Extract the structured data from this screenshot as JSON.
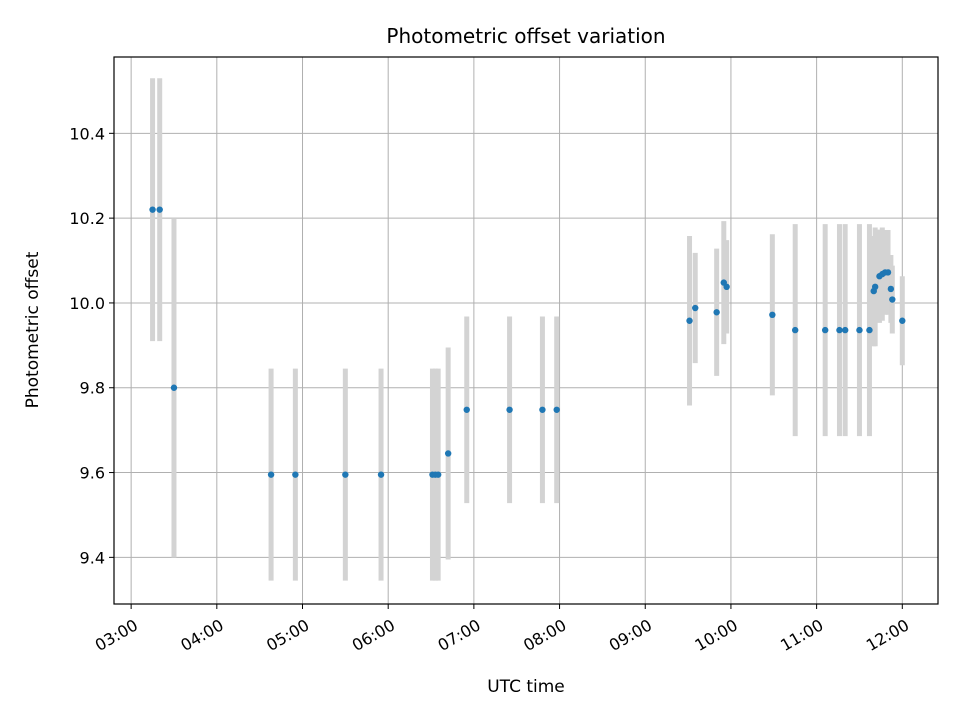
{
  "chart_data": {
    "type": "scatter",
    "title": "Photometric offset variation",
    "xlabel": "UTC time",
    "ylabel": "Photometric offset",
    "x_tick_labels": [
      "03:00",
      "04:00",
      "05:00",
      "06:00",
      "07:00",
      "08:00",
      "09:00",
      "10:00",
      "11:00",
      "12:00"
    ],
    "y_tick_labels": [
      "9.4",
      "9.6",
      "9.8",
      "10.0",
      "10.2",
      "10.4"
    ],
    "x_ticks": [
      "03:00",
      "04:00",
      "05:00",
      "06:00",
      "07:00",
      "08:00",
      "09:00",
      "10:00",
      "11:00",
      "12:00"
    ],
    "y_ticks": [
      9.4,
      9.6,
      9.8,
      10.0,
      10.2,
      10.4
    ],
    "xlim": [
      "02:48",
      "12:25"
    ],
    "ylim": [
      9.29,
      10.58
    ],
    "grid": true,
    "colors": {
      "point": "#1f77b4",
      "errorbar": "#d3d3d3",
      "grid": "#b0b0b0"
    },
    "points": [
      {
        "x": "03:15",
        "y": 10.22,
        "err": 0.31
      },
      {
        "x": "03:20",
        "y": 10.22,
        "err": 0.31
      },
      {
        "x": "03:30",
        "y": 9.8,
        "err": 0.4
      },
      {
        "x": "04:38",
        "y": 9.595,
        "err": 0.25
      },
      {
        "x": "04:55",
        "y": 9.595,
        "err": 0.25
      },
      {
        "x": "05:30",
        "y": 9.595,
        "err": 0.25
      },
      {
        "x": "05:55",
        "y": 9.595,
        "err": 0.25
      },
      {
        "x": "06:31",
        "y": 9.595,
        "err": 0.25
      },
      {
        "x": "06:33",
        "y": 9.595,
        "err": 0.25
      },
      {
        "x": "06:35",
        "y": 9.595,
        "err": 0.25
      },
      {
        "x": "06:42",
        "y": 9.645,
        "err": 0.25
      },
      {
        "x": "06:55",
        "y": 9.748,
        "err": 0.22
      },
      {
        "x": "07:25",
        "y": 9.748,
        "err": 0.22
      },
      {
        "x": "07:48",
        "y": 9.748,
        "err": 0.22
      },
      {
        "x": "07:58",
        "y": 9.748,
        "err": 0.22
      },
      {
        "x": "09:31",
        "y": 9.958,
        "err": 0.2
      },
      {
        "x": "09:35",
        "y": 9.988,
        "err": 0.13
      },
      {
        "x": "09:50",
        "y": 9.978,
        "err": 0.15
      },
      {
        "x": "09:55",
        "y": 10.048,
        "err": 0.145
      },
      {
        "x": "09:57",
        "y": 10.038,
        "err": 0.11
      },
      {
        "x": "10:29",
        "y": 9.972,
        "err": 0.19
      },
      {
        "x": "10:45",
        "y": 9.936,
        "err": 0.25
      },
      {
        "x": "11:06",
        "y": 9.936,
        "err": 0.25
      },
      {
        "x": "11:16",
        "y": 9.936,
        "err": 0.25
      },
      {
        "x": "11:20",
        "y": 9.936,
        "err": 0.25
      },
      {
        "x": "11:30",
        "y": 9.936,
        "err": 0.25
      },
      {
        "x": "11:37",
        "y": 9.936,
        "err": 0.25
      },
      {
        "x": "11:40",
        "y": 10.028,
        "err": 0.13
      },
      {
        "x": "11:41",
        "y": 10.038,
        "err": 0.14
      },
      {
        "x": "11:44",
        "y": 10.063,
        "err": 0.11
      },
      {
        "x": "11:46",
        "y": 10.068,
        "err": 0.11
      },
      {
        "x": "11:48",
        "y": 10.072,
        "err": 0.1
      },
      {
        "x": "11:50",
        "y": 10.072,
        "err": 0.1
      },
      {
        "x": "11:52",
        "y": 10.033,
        "err": 0.08
      },
      {
        "x": "11:53",
        "y": 10.008,
        "err": 0.08
      },
      {
        "x": "12:00",
        "y": 9.958,
        "err": 0.105
      }
    ]
  }
}
